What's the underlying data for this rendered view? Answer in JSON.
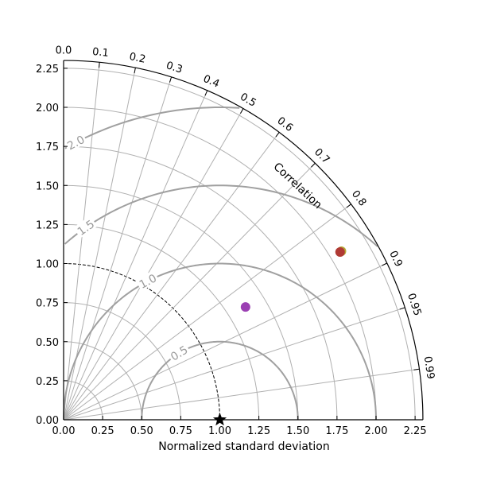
{
  "chart_data": {
    "type": "scatter",
    "subtype": "taylor-diagram",
    "xlabel": "Normalized standard deviation",
    "ylabel": "",
    "angular_axis_label": "Correlation",
    "std_range": [
      0,
      2.3
    ],
    "grid": true,
    "std_ticks": [
      "0.00",
      "0.25",
      "0.50",
      "0.75",
      "1.00",
      "1.25",
      "1.50",
      "1.75",
      "2.00",
      "2.25"
    ],
    "correlation_ticks": [
      "0.0",
      "0.1",
      "0.2",
      "0.3",
      "0.4",
      "0.5",
      "0.6",
      "0.7",
      "0.8",
      "0.9",
      "0.95",
      "0.99"
    ],
    "rms_contours": [
      {
        "value": 0.5,
        "label": "0.5"
      },
      {
        "value": 1.0,
        "label": "1.0"
      },
      {
        "value": 1.5,
        "label": "1.5"
      },
      {
        "value": 2.0,
        "label": "2.0"
      }
    ],
    "reference": {
      "std": 1.0,
      "correlation": 1.0,
      "marker": "star",
      "color": "#000000"
    },
    "points": [
      {
        "std": 1.37,
        "correlation": 0.85,
        "color": "#9b40b3"
      },
      {
        "std": 2.08,
        "correlation": 0.855,
        "color": "#b5a935"
      },
      {
        "std": 2.07,
        "correlation": 0.855,
        "color": "#b03a35"
      }
    ]
  }
}
